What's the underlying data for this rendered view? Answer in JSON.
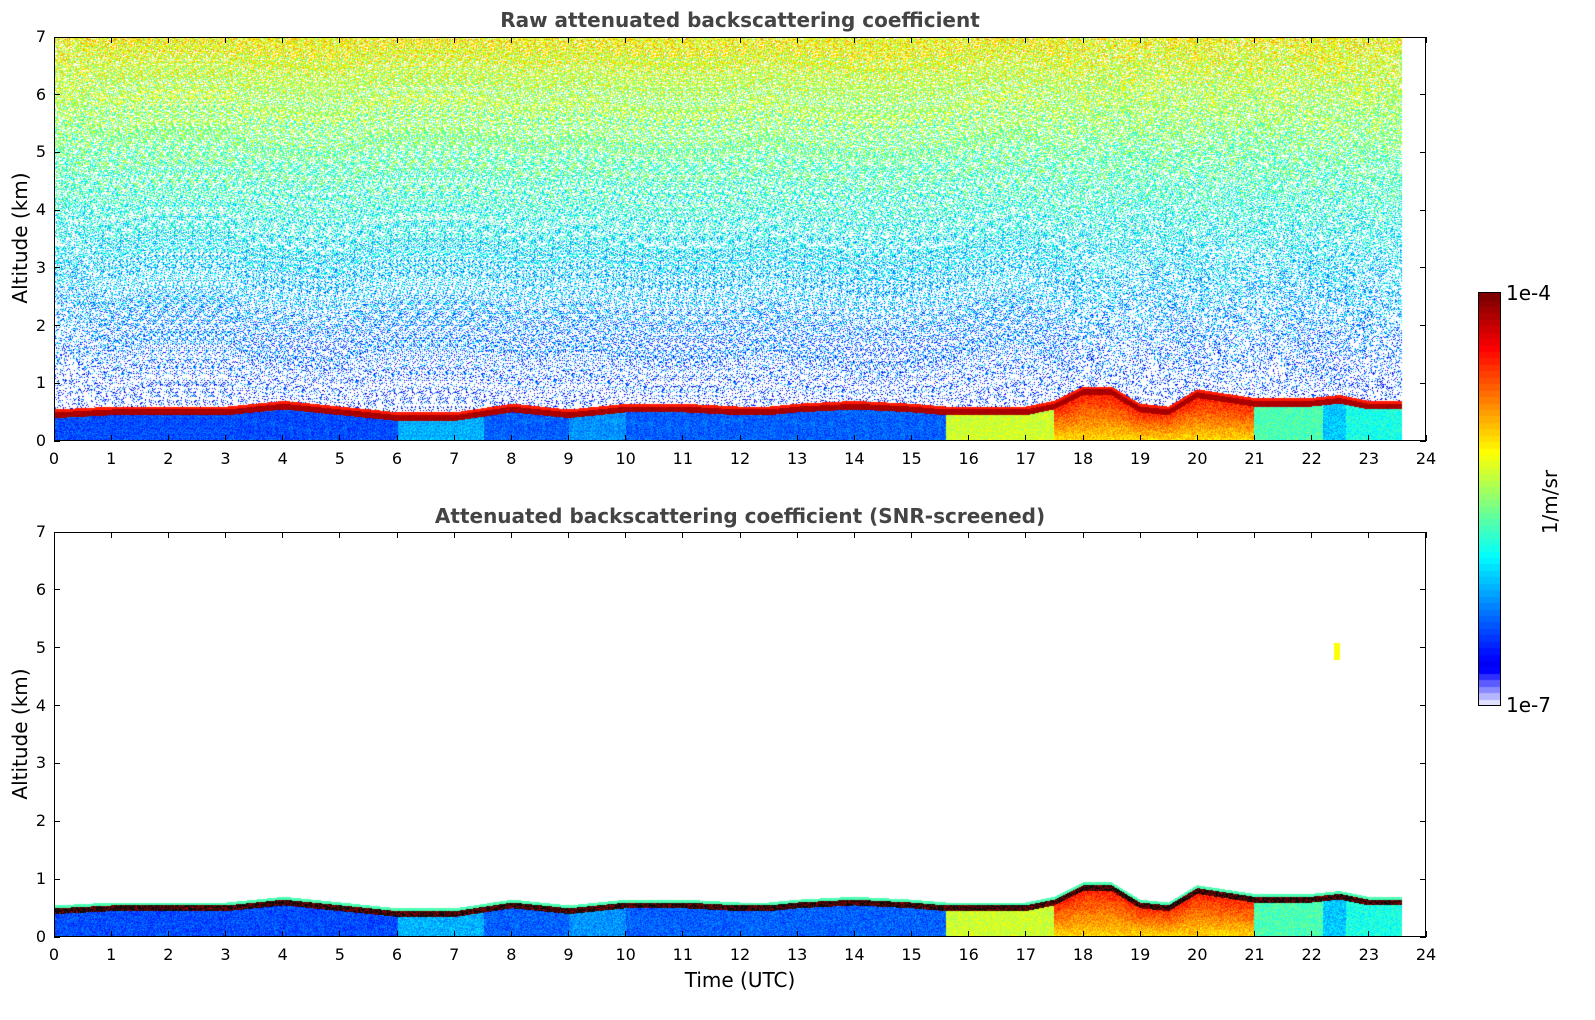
{
  "chart_data": [
    {
      "type": "heatmap",
      "title": "Raw attenuated backscattering coefficient",
      "xlabel": "",
      "ylabel": "Altitude (km)",
      "xlim": [
        0,
        24
      ],
      "ylim": [
        0,
        7
      ],
      "xticks": [
        "0",
        "1",
        "2",
        "3",
        "4",
        "5",
        "6",
        "7",
        "8",
        "9",
        "10",
        "11",
        "12",
        "13",
        "14",
        "15",
        "16",
        "17",
        "18",
        "19",
        "20",
        "21",
        "22",
        "23",
        "24"
      ],
      "yticks": [
        "0",
        "1",
        "2",
        "3",
        "4",
        "5",
        "6",
        "7"
      ],
      "data_extent_hours": 23.6,
      "screened": false,
      "boundary_layer_top_km": {
        "time": [
          0,
          1,
          2,
          3,
          4,
          5,
          6,
          7,
          8,
          9,
          10,
          11,
          12,
          12.5,
          13,
          14,
          15,
          15.6,
          16,
          17,
          17.5,
          18,
          18.5,
          19,
          19.5,
          20,
          21,
          22,
          22.5,
          23,
          23.6
        ],
        "value": [
          0.45,
          0.5,
          0.5,
          0.5,
          0.6,
          0.5,
          0.4,
          0.4,
          0.55,
          0.45,
          0.55,
          0.55,
          0.5,
          0.5,
          0.55,
          0.6,
          0.55,
          0.5,
          0.5,
          0.5,
          0.6,
          0.85,
          0.85,
          0.55,
          0.5,
          0.8,
          0.65,
          0.65,
          0.7,
          0.6,
          0.6
        ]
      }
    },
    {
      "type": "heatmap",
      "title": "Attenuated backscattering coefficient (SNR-screened)",
      "xlabel": "Time (UTC)",
      "ylabel": "Altitude (km)",
      "xlim": [
        0,
        24
      ],
      "ylim": [
        0,
        7
      ],
      "xticks": [
        "0",
        "1",
        "2",
        "3",
        "4",
        "5",
        "6",
        "7",
        "8",
        "9",
        "10",
        "11",
        "12",
        "13",
        "14",
        "15",
        "16",
        "17",
        "18",
        "19",
        "20",
        "21",
        "22",
        "23",
        "24"
      ],
      "yticks": [
        "0",
        "1",
        "2",
        "3",
        "4",
        "5",
        "6",
        "7"
      ],
      "data_extent_hours": 23.6,
      "screened": true,
      "features": [
        {
          "time": 22.45,
          "altitude_km": 4.95,
          "note": "isolated cloud feature"
        }
      ]
    }
  ],
  "colorbar": {
    "max_label": "1e-4",
    "min_label": "1e-7",
    "unit_label": "1/m/sr",
    "colormap": "jet",
    "scale": "log"
  }
}
